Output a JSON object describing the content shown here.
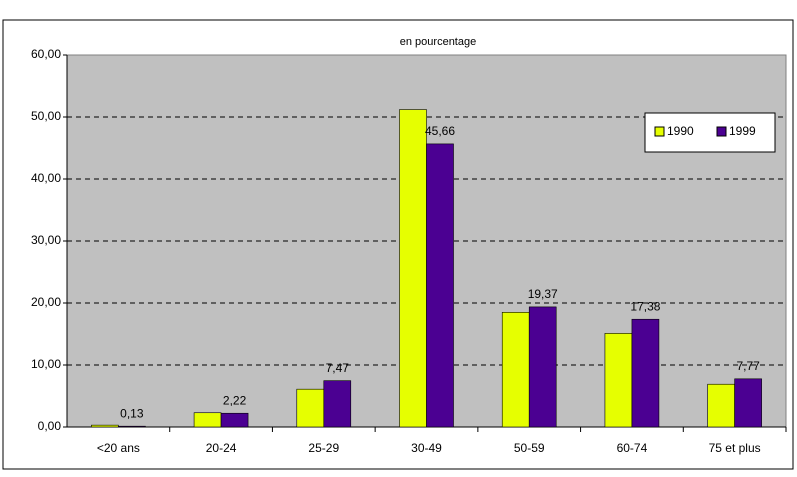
{
  "chart_data": {
    "type": "bar",
    "title": "en pourcentage",
    "categories": [
      "<20 ans",
      "20-24",
      "25-29",
      "30-49",
      "50-59",
      "60-74",
      "75 et plus"
    ],
    "series": [
      {
        "name": "1990",
        "color": "#e6ff00",
        "values": [
          0.3,
          2.3,
          6.1,
          51.2,
          18.5,
          15.1,
          6.9
        ]
      },
      {
        "name": "1999",
        "color": "#4b0092",
        "values": [
          0.13,
          2.22,
          7.47,
          45.66,
          19.37,
          17.38,
          7.77
        ],
        "value_labels": [
          "0,13",
          "2,22",
          "7,47",
          "45,66",
          "19,37",
          "17,38",
          "7,77"
        ]
      }
    ],
    "ylim": [
      0,
      60
    ],
    "yticks": [
      {
        "value": 0,
        "label": "0,00"
      },
      {
        "value": 10,
        "label": "10,00"
      },
      {
        "value": 20,
        "label": "20,00"
      },
      {
        "value": 30,
        "label": "30,00"
      },
      {
        "value": 40,
        "label": "40,00"
      },
      {
        "value": 50,
        "label": "50,00"
      },
      {
        "value": 60,
        "label": "60,00"
      }
    ],
    "grid": true,
    "legend": "top-right"
  }
}
